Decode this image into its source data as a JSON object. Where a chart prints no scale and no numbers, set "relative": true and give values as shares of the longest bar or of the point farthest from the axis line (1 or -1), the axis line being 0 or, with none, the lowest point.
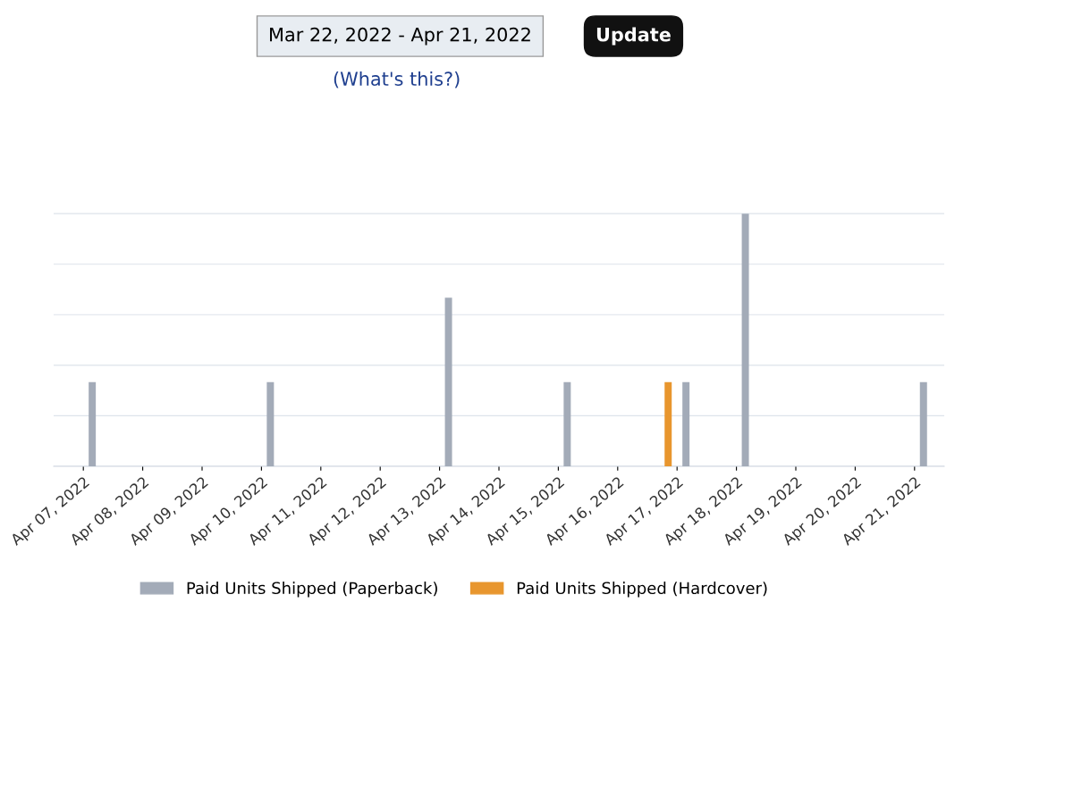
{
  "chart_data": {
    "type": "bar",
    "relative": true,
    "categories": [
      "Apr 07, 2022",
      "Apr 08, 2022",
      "Apr 09, 2022",
      "Apr 10, 2022",
      "Apr 11, 2022",
      "Apr 12, 2022",
      "Apr 13, 2022",
      "Apr 14, 2022",
      "Apr 15, 2022",
      "Apr 16, 2022",
      "Apr 17, 2022",
      "Apr 18, 2022",
      "Apr 19, 2022",
      "Apr 20, 2022",
      "Apr 21, 2022"
    ],
    "series": [
      {
        "name": "Paid Units Shipped (Paperback)",
        "color": "#a3abb8",
        "values": [
          0.333,
          0,
          0,
          0.333,
          0,
          0,
          0.667,
          0,
          0.333,
          0,
          0.333,
          1,
          0,
          0,
          0.333
        ]
      },
      {
        "name": "Paid Units Shipped (Hardcover)",
        "color": "#e8962e",
        "values": [
          0,
          0,
          0,
          0,
          0,
          0,
          0,
          0,
          0,
          0,
          0.333,
          0,
          0,
          0,
          0
        ]
      }
    ],
    "grid": "y",
    "legend": "bottom",
    "annotations": [
      "Mar 22, 2022 - Apr 21, 2022",
      "Update",
      "(What's this?)"
    ]
  }
}
